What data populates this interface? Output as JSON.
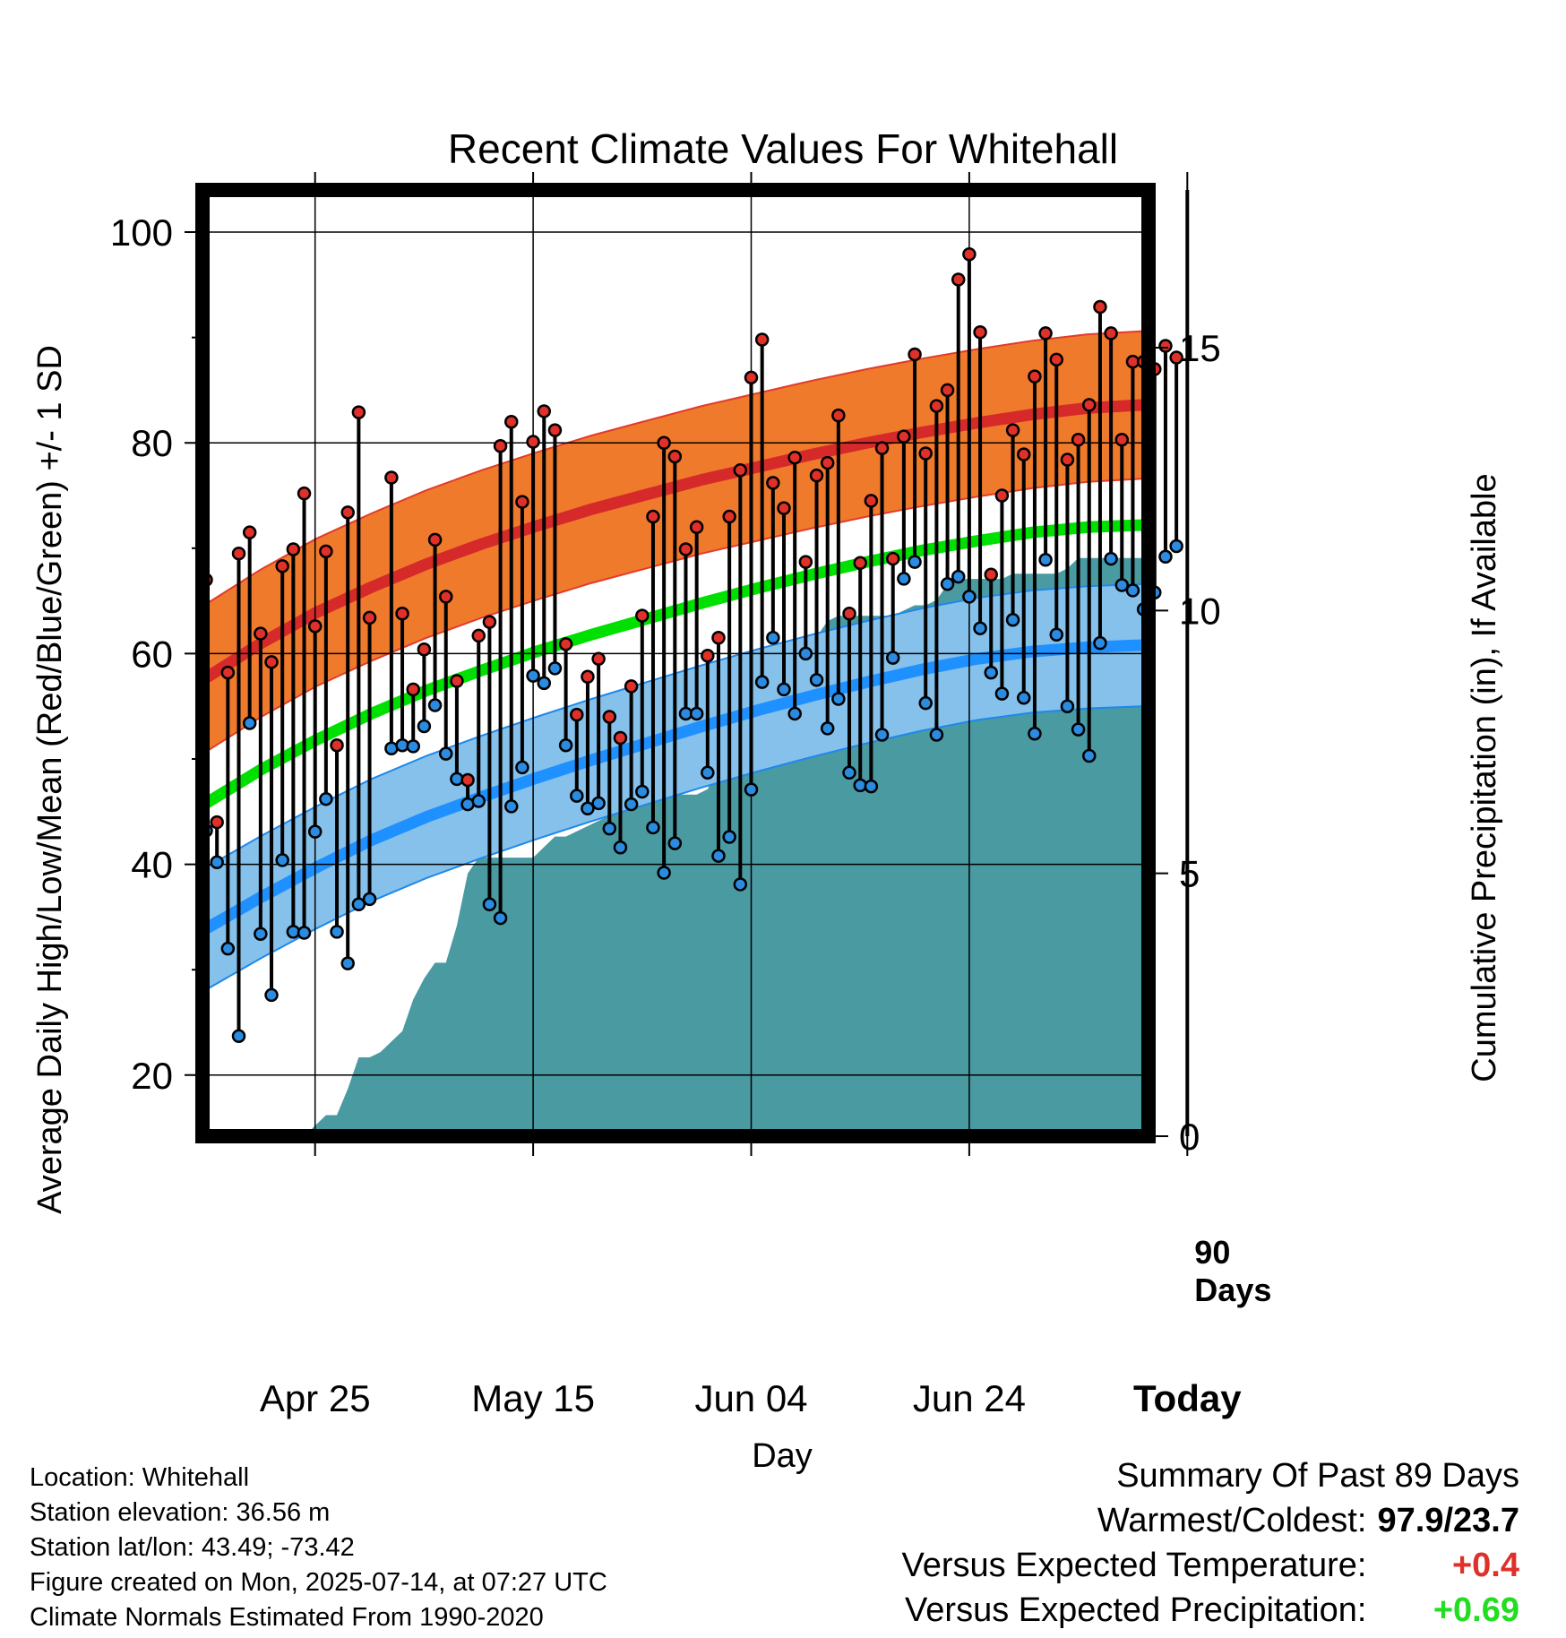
{
  "chart_data": {
    "type": "line",
    "title": "Recent Climate Values For Whitehall",
    "xlabel": "Day",
    "ylabel": "Average Daily High/Low/Mean (Red/Blue/Green) +/- 1 SD",
    "y2label": "Cumulative Precipitation (in), If Available",
    "ylim": [
      14.2,
      104
    ],
    "y2lim": [
      0,
      18
    ],
    "y_ticks": [
      "100",
      "80",
      "60",
      "40",
      "20"
    ],
    "y2_ticks": [
      "15",
      "10",
      "5",
      "0"
    ],
    "x_ticks": [
      "Apr 25",
      "May 15",
      "Jun 04",
      "Jun 24",
      "Today"
    ],
    "x_tick_days": [
      10,
      30,
      50,
      70,
      90
    ],
    "window_label": "90 Days",
    "daily_high": [
      67.0,
      44.0,
      58.2,
      69.5,
      71.5,
      61.9,
      59.2,
      68.3,
      69.9,
      75.2,
      62.6,
      69.7,
      51.3,
      73.4,
      82.9,
      63.4,
      null,
      76.7,
      63.8,
      56.6,
      60.4,
      70.8,
      65.4,
      57.4,
      48.0,
      61.7,
      63.0,
      79.7,
      82.0,
      74.4,
      80.1,
      83.0,
      81.2,
      60.9,
      54.2,
      57.8,
      59.5,
      54.0,
      52.0,
      56.9,
      63.6,
      73.0,
      80.0,
      78.7,
      69.9,
      72.0,
      59.8,
      61.5,
      73.0,
      77.4,
      86.2,
      89.8,
      76.2,
      73.8,
      78.6,
      68.7,
      76.9,
      78.1,
      82.6,
      63.8,
      68.6,
      74.5,
      79.5,
      69.0,
      80.6,
      88.4,
      79.0,
      83.5,
      85.0,
      95.5,
      97.9,
      90.5,
      67.5,
      75.0,
      81.2,
      78.9,
      86.3,
      90.4,
      87.9,
      78.4,
      80.3,
      83.6,
      92.9,
      90.4,
      80.3,
      87.7,
      87.7,
      87.0,
      89.2,
      88.1
    ],
    "daily_low": [
      43.2,
      40.2,
      32.0,
      23.7,
      53.4,
      33.4,
      27.6,
      40.4,
      33.6,
      33.5,
      43.1,
      46.2,
      33.6,
      30.6,
      36.2,
      36.7,
      null,
      51.0,
      51.3,
      51.2,
      53.1,
      55.1,
      50.5,
      48.1,
      45.7,
      46.0,
      36.2,
      34.9,
      45.5,
      49.2,
      57.9,
      57.2,
      58.6,
      51.3,
      46.5,
      45.3,
      45.8,
      43.4,
      41.6,
      45.7,
      46.9,
      43.5,
      39.2,
      42.0,
      54.3,
      54.3,
      48.7,
      40.8,
      42.6,
      38.1,
      47.1,
      57.3,
      61.5,
      56.6,
      54.3,
      60.0,
      57.5,
      52.9,
      55.7,
      48.7,
      47.5,
      47.4,
      52.3,
      59.6,
      67.1,
      68.7,
      55.3,
      52.3,
      66.6,
      67.3,
      65.4,
      62.4,
      58.2,
      56.2,
      63.2,
      55.8,
      52.4,
      68.9,
      61.8,
      55.0,
      52.8,
      50.3,
      61.0,
      69.0,
      66.5,
      66.0,
      64.2,
      65.8,
      69.2,
      70.2
    ],
    "normal_high": [
      57.7,
      61.0,
      63.9,
      66.3,
      68.5,
      70.4,
      72.1,
      73.7,
      75.1,
      76.5,
      77.7,
      78.9,
      80.0,
      81.0,
      81.9,
      82.7,
      83.3,
      83.6,
      83.6,
      83.6
    ],
    "normal_low": [
      33.9,
      36.9,
      39.7,
      42.3,
      44.5,
      46.4,
      48.2,
      49.9,
      51.5,
      53.1,
      54.6,
      56.0,
      57.3,
      58.5,
      59.5,
      60.2,
      60.6,
      60.8,
      60.8,
      60.8
    ],
    "normal_mean": [
      45.8,
      49.0,
      51.8,
      54.3,
      56.5,
      58.4,
      60.2,
      61.8,
      63.3,
      64.8,
      66.2,
      67.5,
      68.7,
      69.8,
      70.7,
      71.5,
      72.0,
      72.2,
      72.2,
      72.2
    ],
    "high_sd": 7.0,
    "low_sd": 5.8,
    "cumulative_precip": [
      0,
      0,
      0,
      0,
      0,
      0,
      0,
      0,
      0,
      0,
      0.2,
      0.4,
      0.4,
      0.9,
      1.5,
      1.5,
      1.6,
      1.8,
      2.0,
      2.6,
      3.0,
      3.3,
      3.3,
      4.0,
      5.0,
      5.3,
      5.3,
      5.3,
      5.3,
      5.3,
      5.3,
      5.5,
      5.7,
      5.7,
      5.8,
      5.9,
      6.0,
      6.1,
      6.3,
      6.4,
      6.4,
      6.4,
      6.4,
      6.5,
      6.5,
      6.5,
      6.6,
      7.0,
      8.2,
      8.3,
      8.3,
      8.3,
      8.3,
      8.6,
      9.2,
      9.4,
      9.5,
      9.8,
      9.9,
      9.9,
      9.9,
      9.9,
      9.9,
      9.9,
      10.0,
      10.1,
      10.1,
      10.2,
      10.5,
      10.6,
      10.6,
      10.6,
      10.6,
      10.6,
      10.7,
      10.7,
      10.7,
      10.7,
      10.7,
      10.8,
      11.0,
      11.0,
      11.0,
      11.0,
      11.0,
      11.0,
      11.0,
      11.1,
      11.2,
      11.5,
      11.5,
      11.5,
      11.5,
      11.5,
      11.5,
      11.5,
      11.5,
      11.5,
      11.5,
      11.5
    ],
    "colors": {
      "high": "#e0302a",
      "low": "#2a8be0",
      "high_band": "#f07a2c",
      "high_line": "#d62a2a",
      "low_band": "#85c1ea",
      "low_line": "#1e90ff",
      "mean_line": "#00e000",
      "precip": "#4a9aa2"
    }
  },
  "footer": {
    "location": "Location: Whitehall",
    "elevation": "Station elevation: 36.56 m",
    "latlon": "Station lat/lon: 43.49; -73.42",
    "created": "Figure created on Mon, 2025-07-14, at 07:27 UTC",
    "normals": "Climate Normals Estimated From 1990-2020"
  },
  "summary": {
    "heading": "Summary Of Past 89 Days",
    "warm_cold_label": "Warmest/Coldest:",
    "warm_cold_value": "97.9/23.7",
    "temp_label": "Versus Expected Temperature:",
    "temp_value": "+0.4",
    "temp_color": "#e0302a",
    "precip_label": "Versus Expected Precipitation:",
    "precip_value": "+0.69",
    "precip_color": "#22dd22"
  }
}
